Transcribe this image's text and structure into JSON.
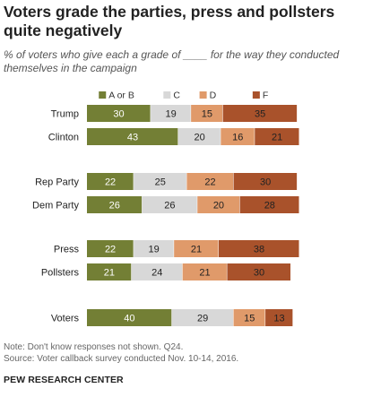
{
  "chart_data": {
    "type": "bar",
    "stacked": true,
    "orientation": "horizontal",
    "title": "Voters grade the parties, press and pollsters quite negatively",
    "subtitle": "% of voters who give each a grade of ____ for the way they conducted themselves in the campaign",
    "categories": [
      "Trump",
      "Clinton",
      "Rep Party",
      "Dem Party",
      "Press",
      "Pollsters",
      "Voters"
    ],
    "groups": [
      [
        0,
        1
      ],
      [
        2,
        3
      ],
      [
        4,
        5
      ],
      [
        6
      ]
    ],
    "series": [
      {
        "name": "A or B",
        "color": "#737f35",
        "label_color": "#ffffff",
        "values": [
          30,
          43,
          22,
          26,
          22,
          21,
          40
        ]
      },
      {
        "name": "C",
        "color": "#d8d8d8",
        "label_color": "#222222",
        "values": [
          19,
          20,
          25,
          26,
          19,
          24,
          29
        ]
      },
      {
        "name": "D",
        "color": "#e09a6a",
        "label_color": "#222222",
        "values": [
          15,
          16,
          22,
          20,
          21,
          21,
          15
        ]
      },
      {
        "name": "F",
        "color": "#a9522b",
        "label_color": "#222222",
        "values": [
          35,
          21,
          30,
          28,
          38,
          30,
          13
        ]
      }
    ],
    "legend_position": "top",
    "grid": false
  },
  "footer": {
    "note": "Note: Don't know responses not shown. Q24.",
    "source": "Source: Voter callback survey conducted Nov. 10-14, 2016.",
    "brand": "PEW RESEARCH CENTER"
  }
}
